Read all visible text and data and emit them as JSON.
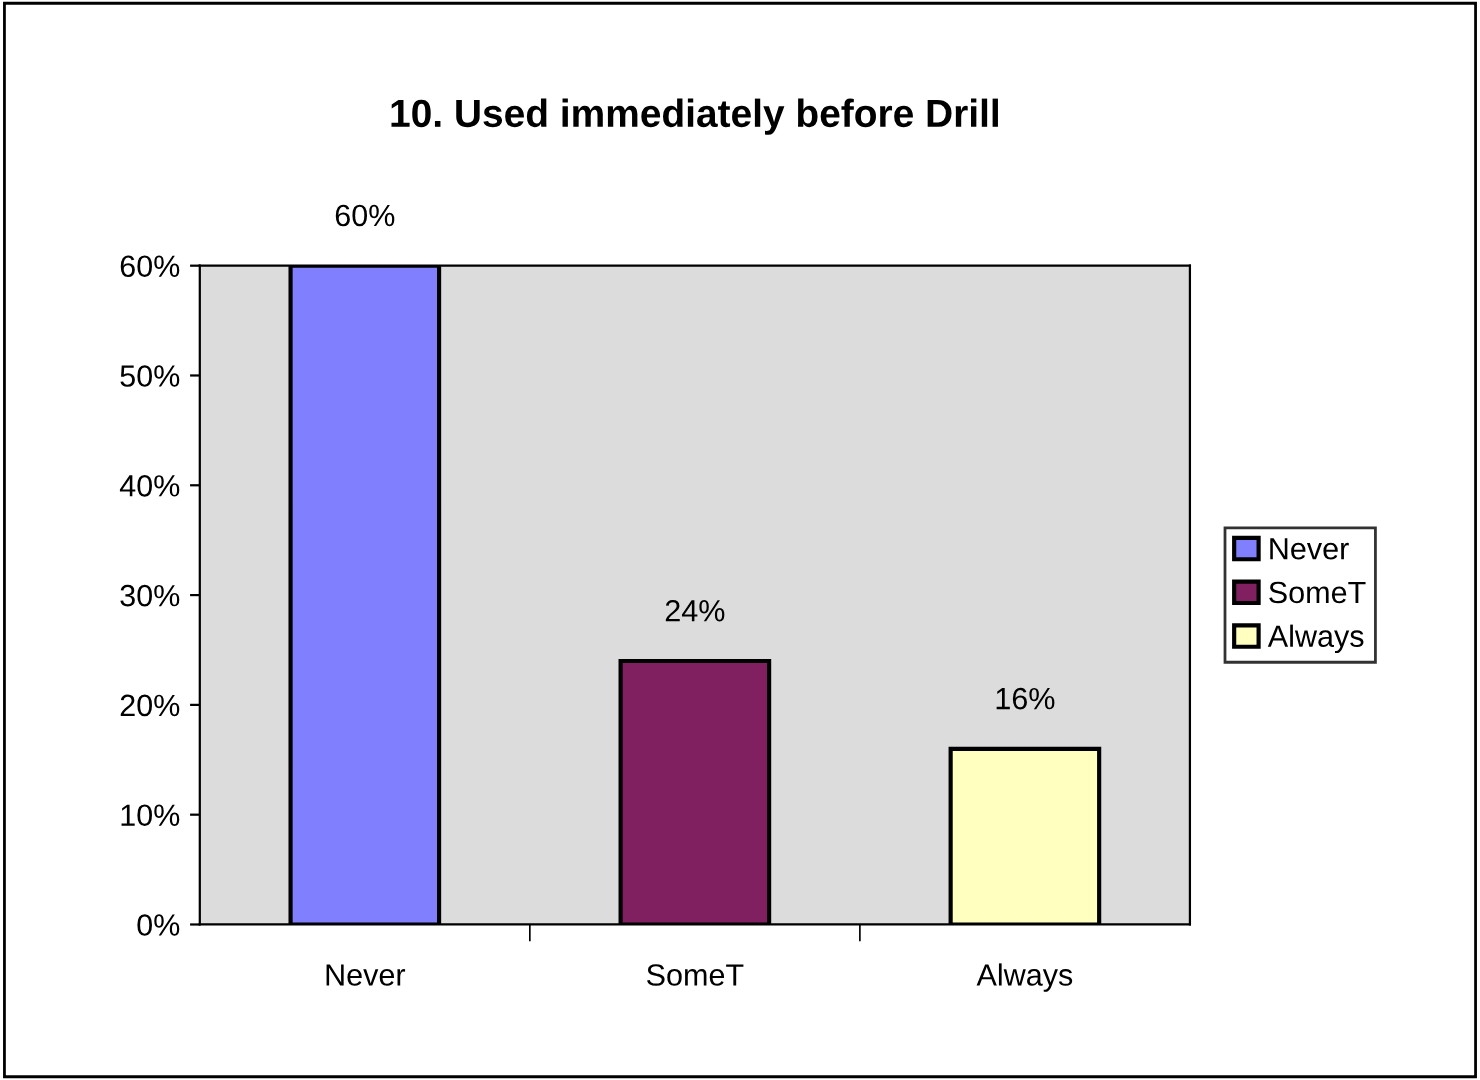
{
  "chart_data": {
    "type": "bar",
    "title": "10. Used immediately before Drill",
    "categories": [
      "Never",
      "SomeT",
      "Always"
    ],
    "series": [
      {
        "name": "Never",
        "color": "#8080ff",
        "values": [
          60,
          null,
          null
        ],
        "value_labels": [
          "60%",
          null,
          null
        ]
      },
      {
        "name": "SomeT",
        "color": "#802060",
        "values": [
          null,
          24,
          null
        ],
        "value_labels": [
          null,
          "24%",
          null
        ]
      },
      {
        "name": "Always",
        "color": "#ffffc0",
        "values": [
          null,
          null,
          16
        ],
        "value_labels": [
          null,
          null,
          "16%"
        ]
      }
    ],
    "ylim": [
      0,
      60
    ],
    "yticks": [
      {
        "value": 0,
        "label": "0%"
      },
      {
        "value": 10,
        "label": "10%"
      },
      {
        "value": 20,
        "label": "20%"
      },
      {
        "value": 30,
        "label": "30%"
      },
      {
        "value": 40,
        "label": "40%"
      },
      {
        "value": 50,
        "label": "50%"
      },
      {
        "value": 60,
        "label": "60%"
      }
    ],
    "grid": false,
    "legend": "right"
  }
}
